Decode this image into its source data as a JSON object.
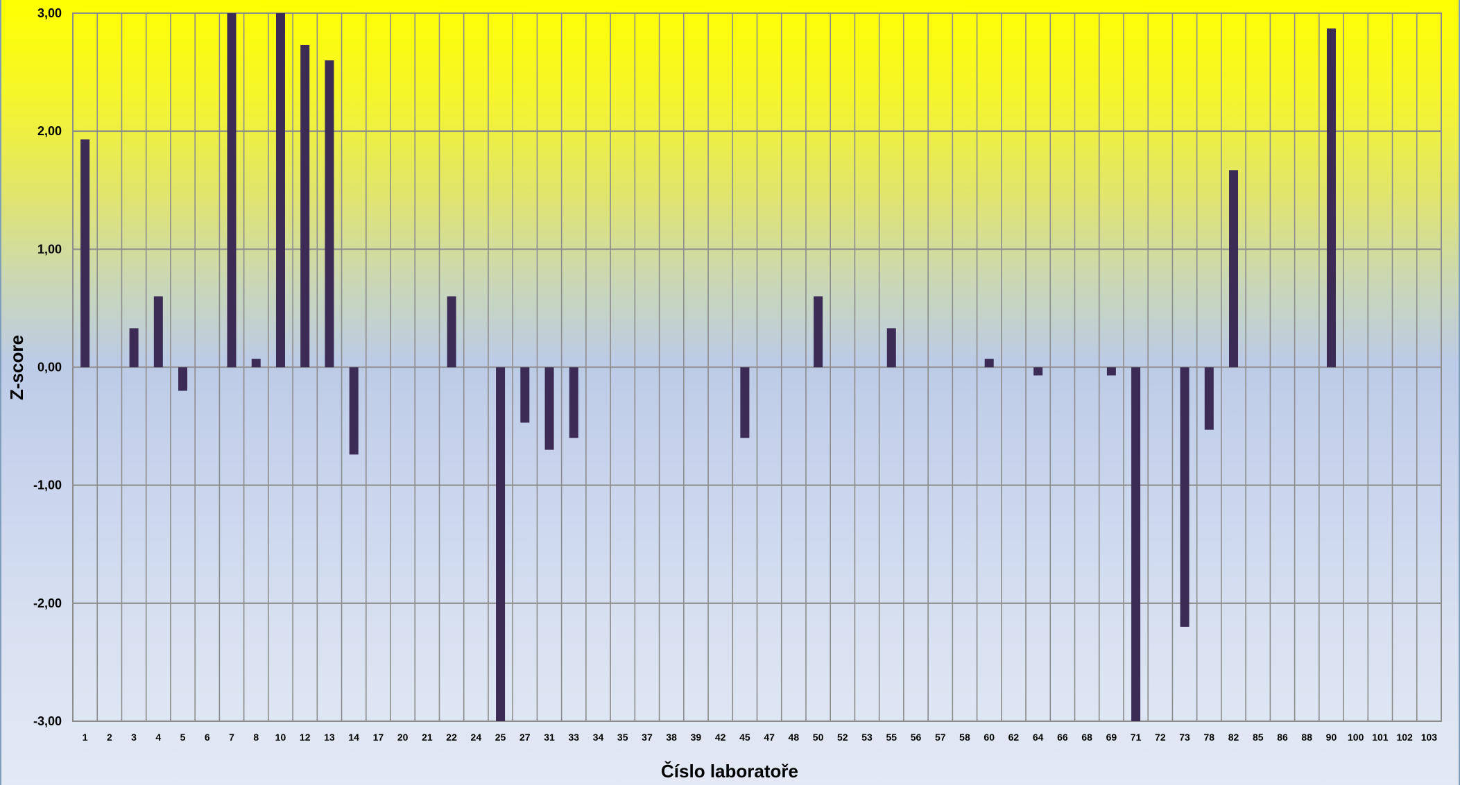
{
  "chart_data": {
    "type": "bar",
    "xlabel": "Číslo laboratoře",
    "ylabel": "Z-score",
    "ylim": [
      -3,
      3
    ],
    "yticks": [
      {
        "value": 3,
        "label": "3,00"
      },
      {
        "value": 2,
        "label": "2,00"
      },
      {
        "value": 1,
        "label": "1,00"
      },
      {
        "value": 0,
        "label": "0,00"
      },
      {
        "value": -1,
        "label": "-1,00"
      },
      {
        "value": -2,
        "label": "-2,00"
      },
      {
        "value": -3,
        "label": "-3,00"
      }
    ],
    "grid": true,
    "legend": "none",
    "bar_color": "#3b2b55",
    "categories": [
      "1",
      "2",
      "3",
      "4",
      "5",
      "6",
      "7",
      "8",
      "10",
      "12",
      "13",
      "14",
      "17",
      "20",
      "21",
      "22",
      "24",
      "25",
      "27",
      "31",
      "33",
      "34",
      "35",
      "37",
      "38",
      "39",
      "42",
      "45",
      "47",
      "48",
      "50",
      "52",
      "53",
      "55",
      "56",
      "57",
      "58",
      "60",
      "62",
      "64",
      "66",
      "68",
      "69",
      "71",
      "72",
      "73",
      "78",
      "82",
      "85",
      "86",
      "88",
      "90",
      "100",
      "101",
      "102",
      "103"
    ],
    "values": [
      1.93,
      0,
      0.33,
      0.6,
      -0.2,
      0,
      3.0,
      0.07,
      3.0,
      2.73,
      2.6,
      -0.74,
      0,
      0,
      0,
      0.6,
      0,
      -3.0,
      -0.47,
      -0.7,
      -0.6,
      0,
      0,
      0,
      0,
      0,
      0,
      -0.6,
      0,
      0,
      0.6,
      0,
      0,
      0.33,
      0,
      0,
      0,
      0.07,
      0,
      -0.07,
      0,
      0,
      -0.07,
      -3.0,
      0,
      -2.2,
      -0.53,
      1.67,
      0,
      0,
      0,
      2.87,
      0,
      0,
      0,
      0
    ]
  }
}
